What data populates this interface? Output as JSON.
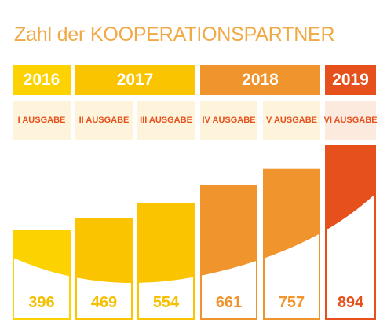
{
  "title": "Zahl der KOOPERATIONSPARTNER",
  "colors": {
    "title": "#f0a945",
    "y2016": "#fcd200",
    "y2017": "#fbc400",
    "y2018": "#f0952d",
    "y2019": "#e6501c",
    "edition_bg": "#fef4db",
    "edition_bg_2019": "#fdeadf"
  },
  "years": [
    {
      "label": "2016",
      "span": [
        0,
        0
      ],
      "color": "#fcd200"
    },
    {
      "label": "2017",
      "span": [
        1,
        2
      ],
      "color": "#fbc400"
    },
    {
      "label": "2018",
      "span": [
        3,
        4
      ],
      "color": "#f0952d"
    },
    {
      "label": "2019",
      "span": [
        5,
        5
      ],
      "color": "#e6501c"
    }
  ],
  "chart_data": {
    "type": "bar",
    "categories": [
      "I AUSGABE",
      "II AUSGABE",
      "III AUSGABE",
      "IV AUSGABE",
      "V AUSGABE",
      "VI AUSGABE"
    ],
    "values": [
      396,
      469,
      554,
      661,
      757,
      894
    ],
    "colors": [
      "#fcd200",
      "#fbc400",
      "#fbc400",
      "#f0952d",
      "#f0952d",
      "#e6501c"
    ],
    "label_colors": [
      "#f5c000",
      "#f5c000",
      "#f5c000",
      "#f0952d",
      "#f0952d",
      "#e6501c"
    ],
    "edition_text_colors": [
      "#e6501c",
      "#e6501c",
      "#e6501c",
      "#e6501c",
      "#e6501c",
      "#e6501c"
    ],
    "title": "Zahl der KOOPERATIONSPARTNER",
    "xlabel": "",
    "ylabel": ""
  }
}
